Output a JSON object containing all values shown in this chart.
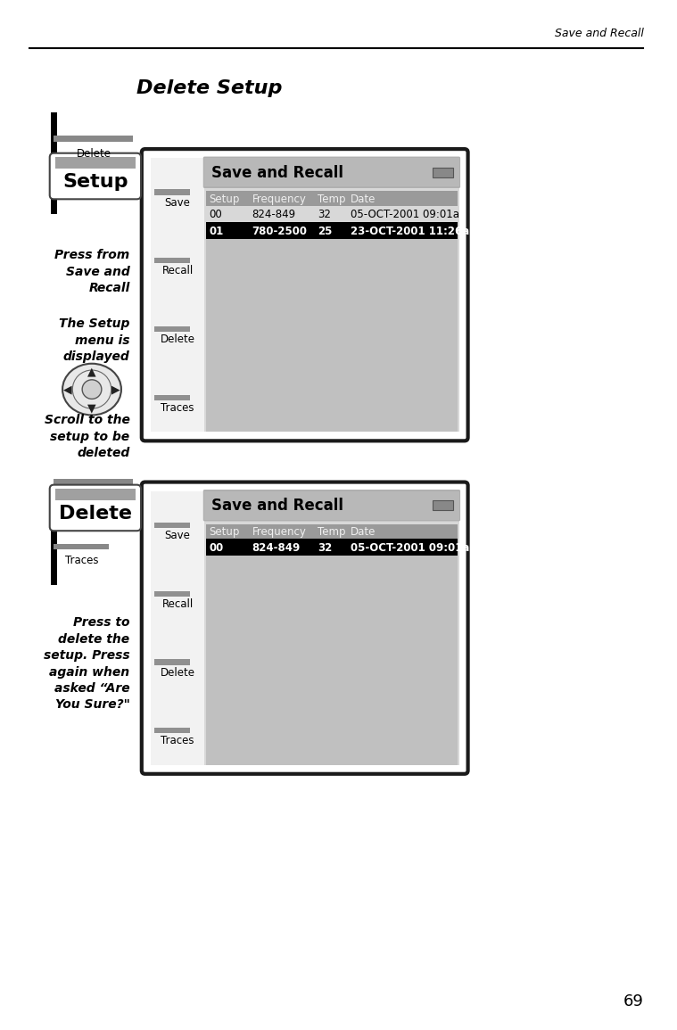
{
  "page_header_right": "Save and Recall",
  "page_title": "Delete Setup",
  "page_number": "69",
  "panel1": {
    "btn_above_label": "Delete",
    "btn_label": "Setup",
    "desc1": "Press from\nSave and\nRecall",
    "desc2": "The Setup\nmenu is\ndisplayed",
    "dpad_desc": "Scroll to the\nsetup to be\ndeleted",
    "sidebar_buttons": [
      "Save",
      "Recall",
      "Delete",
      "Traces"
    ],
    "screen_title": "Save and Recall",
    "table_headers": [
      "Setup",
      "Frequency",
      "Temp",
      "Date"
    ],
    "col_starts": [
      0.0,
      0.17,
      0.43,
      0.56
    ],
    "table_rows": [
      {
        "cols": [
          "00",
          "824-849",
          "32",
          "05-OCT-2001 09:01a"
        ],
        "highlight": false
      },
      {
        "cols": [
          "01",
          "780-2500",
          "25",
          "23-OCT-2001 11:26a"
        ],
        "highlight": true
      }
    ]
  },
  "panel2": {
    "btn_above_label": "Traces",
    "btn_label": "Delete",
    "desc1": "Press to\ndelete the\nsetup. Press\nagain when\nasked “Are\nYou Sure?\"",
    "sidebar_buttons": [
      "Save",
      "Recall",
      "Delete",
      "Traces"
    ],
    "screen_title": "Save and Recall",
    "table_headers": [
      "Setup",
      "Frequency",
      "Temp",
      "Date"
    ],
    "col_starts": [
      0.0,
      0.17,
      0.43,
      0.56
    ],
    "table_rows": [
      {
        "cols": [
          "00",
          "824-849",
          "32",
          "05-OCT-2001 09:01a"
        ],
        "highlight": true
      }
    ]
  },
  "bg_color": "#ffffff",
  "highlight_bg": "#000000",
  "highlight_text": "#ffffff",
  "normal_row_bg": "#d8d8d8",
  "normal_row_text": "#000000"
}
